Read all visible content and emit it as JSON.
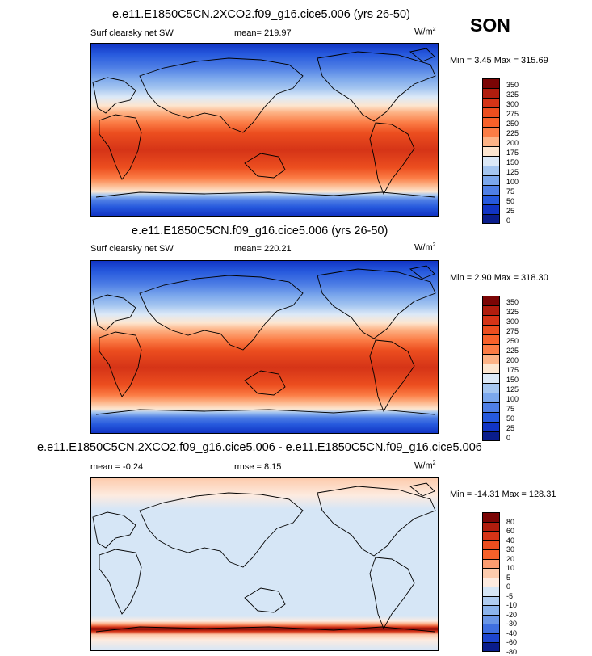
{
  "season": "SON",
  "panels": [
    {
      "title": "e.e11.E1850C5CN.2XCO2.f09_g16.cice5.006 (yrs 26-50)",
      "left_label": "Surf clearsky net SW",
      "mean_label": "mean= 219.97",
      "units_base": "W/m",
      "units_sup": "2",
      "minmax": "Min =   3.45 Max = 315.69",
      "colorbar": {
        "labels": [
          "350",
          "325",
          "300",
          "275",
          "250",
          "225",
          "200",
          "175",
          "150",
          "125",
          "100",
          "75",
          "50",
          "25",
          "0"
        ],
        "colors": [
          "#7b0505",
          "#b01d0e",
          "#d53417",
          "#ec4e1f",
          "#f7612a",
          "#fb7c45",
          "#fdb386",
          "#fde6d0",
          "#dce9f7",
          "#a5c6f0",
          "#7ba7ec",
          "#4f7fe5",
          "#2659dd",
          "#1134c4",
          "#0a1d8c"
        ]
      }
    },
    {
      "title": "e.e11.E1850C5CN.f09_g16.cice5.006 (yrs 26-50)",
      "left_label": "Surf clearsky net SW",
      "mean_label": "mean= 220.21",
      "units_base": "W/m",
      "units_sup": "2",
      "minmax": "Min =   2.90 Max = 318.30",
      "colorbar": {
        "labels": [
          "350",
          "325",
          "300",
          "275",
          "250",
          "225",
          "200",
          "175",
          "150",
          "125",
          "100",
          "75",
          "50",
          "25",
          "0"
        ],
        "colors": [
          "#7b0505",
          "#b01d0e",
          "#d53417",
          "#ec4e1f",
          "#f7612a",
          "#fb7c45",
          "#fdb386",
          "#fde6d0",
          "#dce9f7",
          "#a5c6f0",
          "#7ba7ec",
          "#4f7fe5",
          "#2659dd",
          "#1134c4",
          "#0a1d8c"
        ]
      }
    },
    {
      "title": "e.e11.E1850C5CN.2XCO2.f09_g16.cice5.006 - e.e11.E1850C5CN.f09_g16.cice5.006",
      "left_label": "mean =  -0.24",
      "mean_label": "rmse =   8.15",
      "units_base": "W/m",
      "units_sup": "2",
      "minmax": "Min = -14.31 Max = 128.31",
      "colorbar": {
        "labels": [
          "80",
          "60",
          "40",
          "30",
          "20",
          "10",
          "5",
          "0",
          "-5",
          "-10",
          "-20",
          "-30",
          "-40",
          "-60",
          "-80"
        ],
        "colors": [
          "#7b0505",
          "#b01d0e",
          "#d53417",
          "#ec4e1f",
          "#f7612a",
          "#fb9c70",
          "#fdcbad",
          "#fdebe0",
          "#d6e6f6",
          "#b0cdf1",
          "#8cb4ec",
          "#6a96e6",
          "#3f6fe0",
          "#1e46cf",
          "#0a1d8c"
        ]
      }
    }
  ]
}
